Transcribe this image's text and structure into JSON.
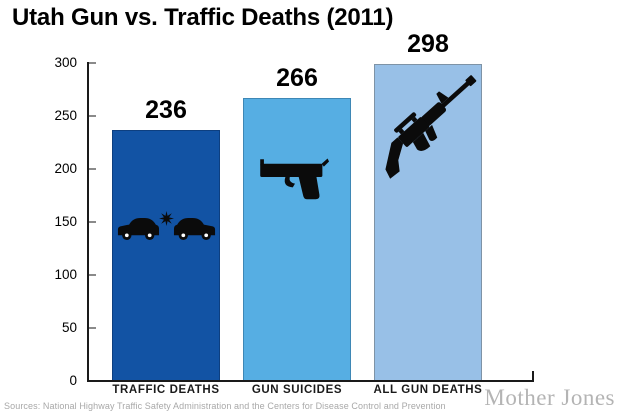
{
  "title": "Utah Gun vs. Traffic Deaths (2011)",
  "chart_data": {
    "type": "bar",
    "title": "Utah Gun vs. Traffic Deaths (2011)",
    "categories": [
      "TRAFFIC DEATHS",
      "GUN SUICIDES",
      "ALL GUN DEATHS"
    ],
    "values": [
      236,
      266,
      298
    ],
    "bar_colors": [
      "#1253a4",
      "#56aee3",
      "#98c0e7"
    ],
    "bar_border_colors": [
      "#0d3f80",
      "#3e87b5",
      "#7e93a6"
    ],
    "bar_icons": [
      "car-crash-icon",
      "handgun-icon",
      "rifle-icon"
    ],
    "ylim": [
      0,
      300
    ],
    "yticks": [
      0,
      50,
      100,
      150,
      200,
      250,
      300
    ],
    "xlabel": "",
    "ylabel": "",
    "grid": false,
    "legend": false
  },
  "footer": {
    "source": "Sources: National Highway Traffic Safety Administration and the Centers for Disease Control and Prevention",
    "brand": "Mother Jones"
  }
}
